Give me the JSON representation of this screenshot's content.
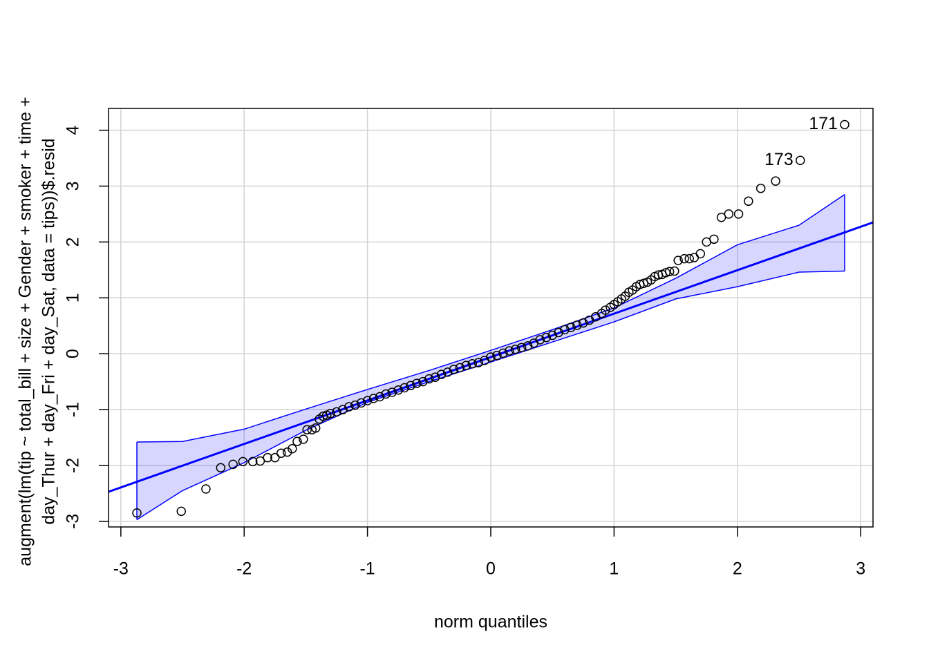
{
  "chart_data": {
    "type": "qqplot",
    "xlabel": "norm quantiles",
    "ylabel": [
      "augment(lm(tip ~ total_bill + size + Gender + smoker + time +",
      "day_Thur + day_Fri + day_Sat, data = tips))$.resid"
    ],
    "xlim": [
      -3.1,
      3.1
    ],
    "ylim": [
      -3.1,
      4.39
    ],
    "xticks": [
      -3,
      -2,
      -1,
      0,
      1,
      2,
      3
    ],
    "yticks": [
      -3,
      -2,
      -1,
      0,
      1,
      2,
      3,
      4
    ],
    "grid": true,
    "point_color": "#000000",
    "line_color": "#0000ff",
    "points": {
      "x": [
        -2.87,
        -2.51,
        -2.31,
        -2.19,
        -2.09,
        -2.01,
        -1.93,
        -1.87,
        -1.81,
        -1.75,
        -1.7,
        -1.65,
        -1.61,
        -1.57,
        -1.52,
        -1.49,
        -1.45,
        -1.42,
        -1.39,
        -1.36,
        -1.33,
        -1.3,
        -1.25,
        -1.2,
        -1.15,
        -1.1,
        -1.05,
        -1.0,
        -0.95,
        -0.9,
        -0.85,
        -0.8,
        -0.75,
        -0.7,
        -0.65,
        -0.6,
        -0.55,
        -0.5,
        -0.45,
        -0.4,
        -0.35,
        -0.3,
        -0.25,
        -0.2,
        -0.15,
        -0.1,
        -0.05,
        0.0,
        0.05,
        0.1,
        0.15,
        0.2,
        0.25,
        0.3,
        0.35,
        0.4,
        0.45,
        0.5,
        0.55,
        0.6,
        0.65,
        0.7,
        0.75,
        0.8,
        0.85,
        0.9,
        0.93,
        0.97,
        1.0,
        1.03,
        1.06,
        1.09,
        1.12,
        1.15,
        1.18,
        1.21,
        1.24,
        1.27,
        1.3,
        1.33,
        1.36,
        1.39,
        1.42,
        1.45,
        1.49,
        1.52,
        1.57,
        1.61,
        1.65,
        1.7,
        1.75,
        1.81,
        1.87,
        1.93,
        2.01,
        2.09,
        2.19,
        2.31,
        2.51,
        2.87
      ],
      "y": [
        -2.85,
        -2.82,
        -2.42,
        -2.04,
        -1.98,
        -1.93,
        -1.93,
        -1.92,
        -1.86,
        -1.86,
        -1.78,
        -1.76,
        -1.7,
        -1.57,
        -1.53,
        -1.36,
        -1.36,
        -1.33,
        -1.17,
        -1.12,
        -1.1,
        -1.07,
        -1.04,
        -1.0,
        -0.95,
        -0.92,
        -0.88,
        -0.84,
        -0.8,
        -0.77,
        -0.72,
        -0.69,
        -0.65,
        -0.61,
        -0.57,
        -0.53,
        -0.5,
        -0.45,
        -0.42,
        -0.37,
        -0.33,
        -0.28,
        -0.25,
        -0.21,
        -0.18,
        -0.16,
        -0.12,
        -0.06,
        -0.03,
        0.01,
        0.05,
        0.08,
        0.11,
        0.14,
        0.19,
        0.25,
        0.29,
        0.33,
        0.38,
        0.43,
        0.47,
        0.51,
        0.55,
        0.6,
        0.66,
        0.72,
        0.78,
        0.83,
        0.88,
        0.93,
        0.98,
        1.03,
        1.1,
        1.14,
        1.2,
        1.24,
        1.26,
        1.28,
        1.32,
        1.38,
        1.41,
        1.42,
        1.45,
        1.47,
        1.48,
        1.67,
        1.7,
        1.7,
        1.72,
        1.79,
        2.0,
        2.05,
        2.44,
        2.5,
        2.5,
        2.73,
        2.96,
        3.09,
        3.46,
        4.1
      ]
    },
    "line": {
      "x": [
        -3.1,
        3.1
      ],
      "y": [
        -2.47,
        2.35
      ]
    },
    "band": {
      "x": [
        -2.87,
        -2.5,
        -2.0,
        -1.5,
        -1.0,
        -0.5,
        0,
        0.5,
        1.0,
        1.5,
        2.0,
        2.5,
        2.87
      ],
      "upper": [
        -1.58,
        -1.57,
        -1.35,
        -0.99,
        -0.64,
        -0.3,
        0.06,
        0.43,
        0.82,
        1.35,
        1.95,
        2.3,
        2.85
      ],
      "lower": [
        -2.97,
        -2.45,
        -1.95,
        -1.37,
        -0.87,
        -0.5,
        -0.15,
        0.21,
        0.57,
        0.98,
        1.2,
        1.46,
        1.48
      ]
    },
    "annotations": [
      {
        "text": "171",
        "x": 2.87,
        "y": 4.1
      },
      {
        "text": "173",
        "x": 2.51,
        "y": 3.46
      }
    ]
  }
}
